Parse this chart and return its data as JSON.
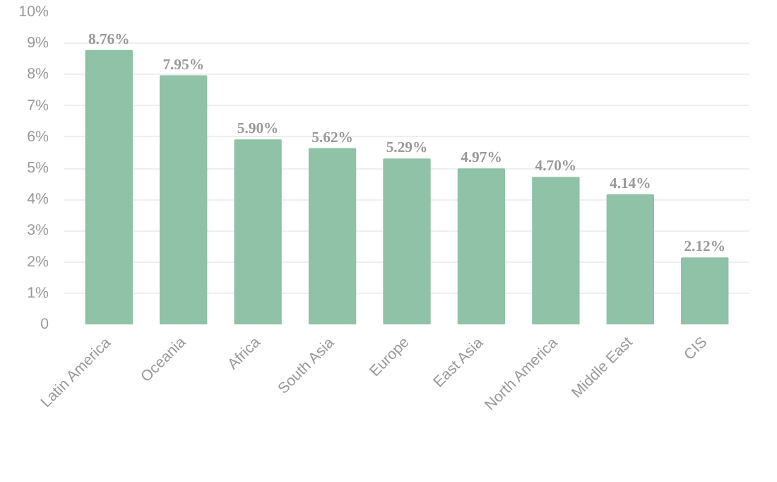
{
  "chart_data": {
    "type": "bar",
    "categories": [
      "Latin America",
      "Oceania",
      "Africa",
      "South Asia",
      "Europe",
      "East Asia",
      "North America",
      "Middle East",
      "CIS"
    ],
    "values": [
      8.76,
      7.95,
      5.9,
      5.62,
      5.29,
      4.97,
      4.7,
      4.14,
      2.12
    ],
    "value_labels": [
      "8.76%",
      "7.95%",
      "5.90%",
      "5.62%",
      "5.29%",
      "4.97%",
      "4.70%",
      "4.14%",
      "2.12%"
    ],
    "color": "#8fc2a6",
    "ylim": [
      0,
      10
    ],
    "yticks": [
      {
        "value": 0,
        "label": "0"
      },
      {
        "value": 1,
        "label": "1%"
      },
      {
        "value": 2,
        "label": "2%"
      },
      {
        "value": 3,
        "label": "3%"
      },
      {
        "value": 4,
        "label": "4%"
      },
      {
        "value": 5,
        "label": "5%"
      },
      {
        "value": 6,
        "label": "6%"
      },
      {
        "value": 7,
        "label": "7%"
      },
      {
        "value": 8,
        "label": "8%"
      },
      {
        "value": 9,
        "label": "9%"
      },
      {
        "value": 10,
        "label": "10%"
      }
    ],
    "grid": "y"
  }
}
